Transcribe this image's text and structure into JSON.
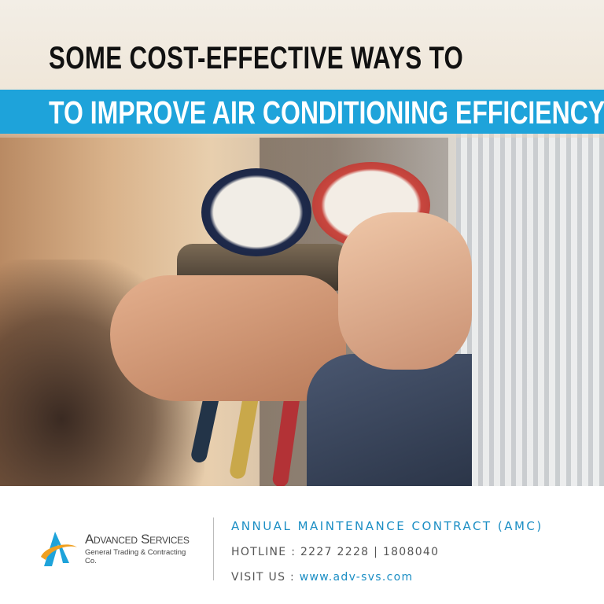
{
  "headline": {
    "line1": "SOME COST-EFFECTIVE WAYS TO",
    "line2": "TO IMPROVE AIR CONDITIONING EFFICIENCY"
  },
  "footer": {
    "company_name": "Advanced Services",
    "company_sub": "General Trading & Contracting Co.",
    "amc": "ANNUAL MAINTENANCE CONTRACT (AMC)",
    "hotline": "HOTLINE : 2227 2228 | 1808040",
    "visit_label": "VISIT US : ",
    "website": "www.adv-svs.com"
  },
  "colors": {
    "brand_blue": "#1ea3da",
    "logo_orange": "#f0a020"
  }
}
